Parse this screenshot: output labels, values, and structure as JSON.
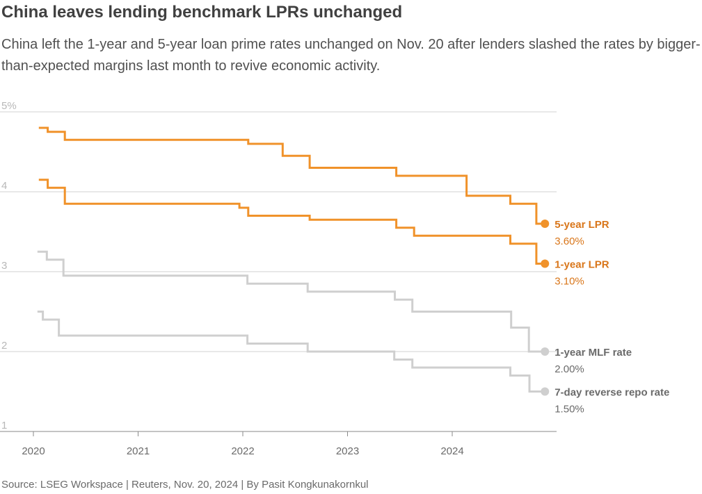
{
  "title": "China leaves lending benchmark LPRs unchanged",
  "subtitle": "China left the 1-year and 5-year loan prime rates unchanged on Nov. 20 after lenders slashed the rates by bigger-than-expected margins last month to revive economic activity.",
  "source": "Source: LSEG Workspace | Reuters, Nov. 20, 2024 | By Pasit Kongkunakornkul",
  "colors": {
    "lpr": "#f0922a",
    "lpr_label": "#d9761a",
    "policy": "#cfcfcf",
    "policy_label": "#6a6a6a",
    "grid": "#d0d0d0"
  },
  "chart_data": {
    "type": "line",
    "step": true,
    "title": "China leaves lending benchmark LPRs unchanged",
    "xlabel": "",
    "ylabel": "",
    "xlim": [
      "2020-01-01",
      "2024-11-30"
    ],
    "ylim": [
      1,
      5
    ],
    "y_ticks": [
      5,
      4,
      3,
      2,
      1
    ],
    "y_tick_labels": [
      "5%",
      "4",
      "3",
      "2",
      "1"
    ],
    "x_ticks": [
      "2020",
      "2021",
      "2022",
      "2023",
      "2024"
    ],
    "grid": true,
    "legend": "direct labels at right end of each line",
    "series": [
      {
        "name": "5-year LPR",
        "end_label": "3.60%",
        "x": [
          "2020-01-20",
          "2020-02-20",
          "2020-04-20",
          "2022-01-20",
          "2022-05-20",
          "2022-08-22",
          "2023-06-20",
          "2024-02-20",
          "2024-07-22",
          "2024-10-21",
          "2024-11-20"
        ],
        "values": [
          4.8,
          4.75,
          4.65,
          4.6,
          4.45,
          4.3,
          4.2,
          3.95,
          3.85,
          3.6,
          3.6
        ]
      },
      {
        "name": "1-year LPR",
        "end_label": "3.10%",
        "x": [
          "2020-01-20",
          "2020-02-20",
          "2020-04-20",
          "2021-12-20",
          "2022-01-20",
          "2022-08-22",
          "2023-06-20",
          "2023-08-21",
          "2024-07-22",
          "2024-10-21",
          "2024-11-20"
        ],
        "values": [
          4.15,
          4.05,
          3.85,
          3.8,
          3.7,
          3.65,
          3.55,
          3.45,
          3.35,
          3.1,
          3.1
        ]
      },
      {
        "name": "1-year MLF rate",
        "end_label": "2.00%",
        "x": [
          "2020-01-15",
          "2020-02-17",
          "2020-04-15",
          "2022-01-17",
          "2022-08-15",
          "2023-06-15",
          "2023-08-15",
          "2024-07-25",
          "2024-09-25",
          "2024-11-20"
        ],
        "values": [
          3.25,
          3.15,
          2.95,
          2.85,
          2.75,
          2.65,
          2.5,
          2.3,
          2.0,
          2.0
        ]
      },
      {
        "name": "7-day reverse repo rate",
        "end_label": "1.50%",
        "x": [
          "2020-01-15",
          "2020-02-03",
          "2020-03-30",
          "2022-01-17",
          "2022-08-15",
          "2023-06-13",
          "2023-08-15",
          "2024-07-22",
          "2024-09-27",
          "2024-11-20"
        ],
        "values": [
          2.5,
          2.4,
          2.2,
          2.1,
          2.0,
          1.9,
          1.8,
          1.7,
          1.5,
          1.5
        ]
      }
    ]
  }
}
